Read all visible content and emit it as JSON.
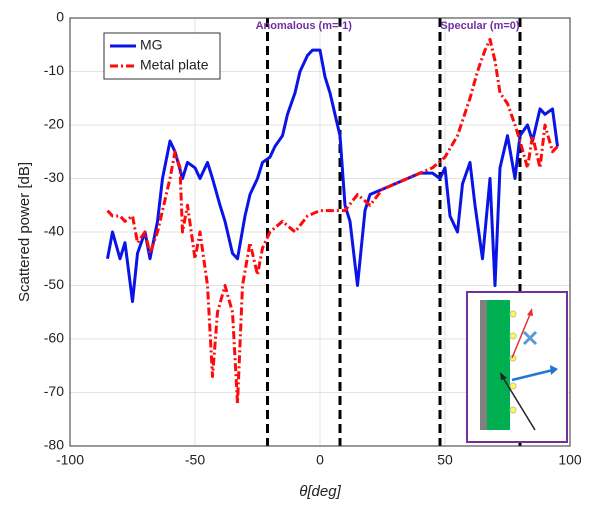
{
  "chart_data": {
    "type": "line",
    "xlabel": "θ[deg]",
    "ylabel": "Scattered power [dB]",
    "xlim": [
      -100,
      100
    ],
    "ylim": [
      -80,
      0
    ],
    "xticks": [
      -100,
      -50,
      0,
      50,
      100
    ],
    "yticks": [
      -80,
      -70,
      -60,
      -50,
      -40,
      -30,
      -20,
      -10,
      0
    ],
    "grid": true,
    "legend": "upper left",
    "reference_lines": [
      -21,
      8,
      48,
      80
    ],
    "annotations": [
      "Anomalous (m=-1)",
      "Specular (m=0)"
    ],
    "series": [
      {
        "name": "MG",
        "color": "#0a14e6",
        "style": "solid",
        "x": [
          -85,
          -83,
          -80,
          -78,
          -75,
          -73,
          -70,
          -68,
          -65,
          -63,
          -60,
          -58,
          -55,
          -53,
          -50,
          -48,
          -45,
          -43,
          -40,
          -38,
          -35,
          -33,
          -30,
          -28,
          -25,
          -23,
          -20,
          -18,
          -15,
          -13,
          -10,
          -8,
          -5,
          -3,
          0,
          2,
          4,
          6,
          8,
          10,
          12,
          15,
          18,
          20,
          25,
          30,
          35,
          40,
          45,
          48,
          50,
          52,
          55,
          57,
          60,
          62,
          65,
          68,
          70,
          72,
          75,
          78,
          80,
          83,
          85,
          88,
          90,
          93,
          95
        ],
        "values": [
          -45,
          -40,
          -45,
          -42,
          -53,
          -44,
          -40,
          -45,
          -38,
          -30,
          -23,
          -25,
          -30,
          -27,
          -28,
          -30,
          -27,
          -30,
          -35,
          -38,
          -44,
          -45,
          -37,
          -33,
          -30,
          -27,
          -26,
          -24,
          -22,
          -18,
          -14,
          -10,
          -7,
          -6,
          -6,
          -11,
          -14,
          -18,
          -22,
          -35,
          -38,
          -50,
          -36,
          -33,
          -32,
          -31,
          -30,
          -29,
          -29,
          -30,
          -28,
          -37,
          -40,
          -31,
          -27,
          -35,
          -45,
          -30,
          -50,
          -28,
          -22,
          -30,
          -22,
          -20,
          -23,
          -17,
          -18,
          -17,
          -24
        ]
      },
      {
        "name": "Metal plate",
        "color": "#ff0a0a",
        "style": "dashdot",
        "x": [
          -85,
          -83,
          -80,
          -78,
          -75,
          -73,
          -70,
          -68,
          -65,
          -63,
          -60,
          -58,
          -56,
          -55,
          -53,
          -50,
          -48,
          -45,
          -43,
          -41,
          -38,
          -35,
          -33,
          -31,
          -28,
          -25,
          -23,
          -20,
          -15,
          -10,
          -5,
          0,
          5,
          10,
          15,
          20,
          25,
          30,
          35,
          40,
          45,
          50,
          55,
          60,
          63,
          66,
          68,
          70,
          72,
          75,
          78,
          80,
          83,
          85,
          88,
          90,
          93,
          95
        ],
        "values": [
          -36,
          -37,
          -37,
          -38,
          -37,
          -42,
          -40,
          -44,
          -40,
          -36,
          -30,
          -25,
          -28,
          -40,
          -35,
          -45,
          -40,
          -50,
          -67,
          -55,
          -50,
          -55,
          -72,
          -50,
          -42,
          -48,
          -43,
          -40,
          -38,
          -40,
          -37,
          -36,
          -36,
          -36,
          -33,
          -35,
          -32,
          -31,
          -30,
          -29,
          -28,
          -26,
          -22,
          -15,
          -10,
          -6,
          -4,
          -8,
          -14,
          -16,
          -20,
          -23,
          -28,
          -22,
          -28,
          -20,
          -25,
          -24
        ]
      }
    ]
  }
}
